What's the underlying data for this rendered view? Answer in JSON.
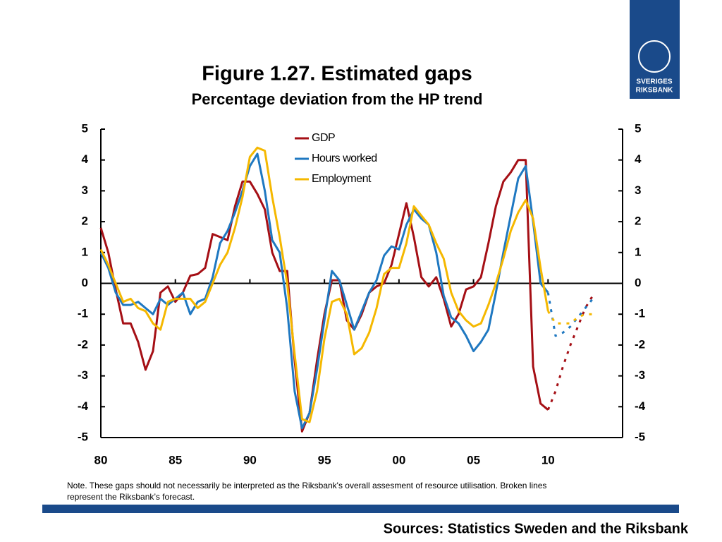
{
  "logo": {
    "line1": "SVERIGES",
    "line2": "RIKSBANK"
  },
  "note": [
    "Note. These gaps should not necessarily be interpreted as the Riksbank's overall assesment of resource utilisation. Broken lines",
    "represent the Riksbank’s forecast."
  ],
  "sources": "Sources: Statistics Sweden and the Riksbank",
  "chart_data": {
    "type": "line",
    "title": "Figure 1.27. Estimated gaps",
    "subtitle": "Percentage deviation from the HP trend",
    "x": [
      1980,
      1980.5,
      1981,
      1981.5,
      1982,
      1982.5,
      1983,
      1983.5,
      1984,
      1984.5,
      1985,
      1985.5,
      1986,
      1986.5,
      1987,
      1987.5,
      1988,
      1988.5,
      1989,
      1989.5,
      1990,
      1990.5,
      1991,
      1991.5,
      1992,
      1992.5,
      1993,
      1993.5,
      1994,
      1994.5,
      1995,
      1995.5,
      1996,
      1996.5,
      1997,
      1997.5,
      1998,
      1998.5,
      1999,
      1999.5,
      2000,
      2000.5,
      2001,
      2001.5,
      2002,
      2002.5,
      2003,
      2003.5,
      2004,
      2004.5,
      2005,
      2005.5,
      2006,
      2006.5,
      2007,
      2007.5,
      2008,
      2008.5,
      2009,
      2009.5,
      2010,
      2010.5,
      2011,
      2011.5,
      2012,
      2012.5,
      2013
    ],
    "series": [
      {
        "name": "GDP",
        "color": "#a50f15",
        "values": [
          1.8,
          1.0,
          -0.2,
          -1.3,
          -1.3,
          -1.9,
          -2.8,
          -2.2,
          -0.3,
          -0.1,
          -0.6,
          -0.3,
          0.25,
          0.3,
          0.5,
          1.6,
          1.5,
          1.4,
          2.5,
          3.3,
          3.3,
          2.9,
          2.4,
          1.0,
          0.4,
          0.4,
          -2.5,
          -4.8,
          -4.2,
          -2.5,
          -1.0,
          0.1,
          0.1,
          -1.2,
          -1.5,
          -1.0,
          -0.3,
          -0.1,
          0.0,
          0.6,
          1.6,
          2.6,
          1.5,
          0.2,
          -0.1,
          0.2,
          -0.5,
          -1.4,
          -1.0,
          -0.2,
          -0.1,
          0.2,
          1.3,
          2.5,
          3.3,
          3.6,
          4.0,
          4.0,
          -2.7,
          -3.9,
          -4.1,
          null,
          null,
          null,
          null,
          null,
          null
        ],
        "forecast": [
          null,
          null,
          null,
          null,
          null,
          null,
          null,
          null,
          null,
          null,
          null,
          null,
          null,
          null,
          null,
          null,
          null,
          null,
          null,
          null,
          null,
          null,
          null,
          null,
          null,
          null,
          null,
          null,
          null,
          null,
          null,
          null,
          null,
          null,
          null,
          null,
          null,
          null,
          null,
          null,
          null,
          null,
          null,
          null,
          null,
          null,
          null,
          null,
          null,
          null,
          null,
          null,
          null,
          null,
          null,
          null,
          null,
          null,
          null,
          null,
          -4.1,
          -3.5,
          -2.7,
          -2.0,
          -1.4,
          -0.8,
          -0.4
        ]
      },
      {
        "name": "Hours worked",
        "color": "#1f78c1",
        "values": [
          1.0,
          0.5,
          -0.3,
          -0.7,
          -0.7,
          -0.6,
          -0.8,
          -1.0,
          -0.5,
          -0.7,
          -0.5,
          -0.3,
          -1.0,
          -0.6,
          -0.5,
          0.2,
          1.3,
          1.7,
          2.3,
          3.0,
          3.8,
          4.2,
          3.0,
          1.4,
          1.0,
          -0.8,
          -3.5,
          -4.7,
          -4.2,
          -2.8,
          -1.2,
          0.4,
          0.1,
          -0.7,
          -1.5,
          -0.9,
          -0.3,
          0.1,
          0.9,
          1.2,
          1.1,
          1.9,
          2.4,
          2.1,
          1.9,
          1.0,
          -0.4,
          -1.1,
          -1.3,
          -1.7,
          -2.2,
          -1.9,
          -1.5,
          -0.3,
          1.0,
          2.2,
          3.4,
          3.8,
          2.0,
          0.0,
          -0.3,
          null,
          null,
          null,
          null,
          null,
          null
        ],
        "forecast": [
          null,
          null,
          null,
          null,
          null,
          null,
          null,
          null,
          null,
          null,
          null,
          null,
          null,
          null,
          null,
          null,
          null,
          null,
          null,
          null,
          null,
          null,
          null,
          null,
          null,
          null,
          null,
          null,
          null,
          null,
          null,
          null,
          null,
          null,
          null,
          null,
          null,
          null,
          null,
          null,
          null,
          null,
          null,
          null,
          null,
          null,
          null,
          null,
          null,
          null,
          null,
          null,
          null,
          null,
          null,
          null,
          null,
          null,
          null,
          null,
          -0.3,
          -1.7,
          -1.6,
          -1.4,
          -1.1,
          -0.8,
          -0.5
        ]
      },
      {
        "name": "Employment",
        "color": "#f5b800",
        "values": [
          1.1,
          0.6,
          0.0,
          -0.6,
          -0.5,
          -0.8,
          -0.9,
          -1.3,
          -1.5,
          -0.6,
          -0.5,
          -0.5,
          -0.5,
          -0.8,
          -0.6,
          0.0,
          0.6,
          1.0,
          1.8,
          2.8,
          4.1,
          4.4,
          4.3,
          2.8,
          1.5,
          0.0,
          -2.3,
          -4.4,
          -4.5,
          -3.5,
          -1.8,
          -0.6,
          -0.5,
          -1.0,
          -2.3,
          -2.1,
          -1.6,
          -0.8,
          0.3,
          0.5,
          0.5,
          1.3,
          2.5,
          2.2,
          1.9,
          1.3,
          0.8,
          -0.3,
          -0.9,
          -1.2,
          -1.4,
          -1.3,
          -0.7,
          0.0,
          0.8,
          1.7,
          2.3,
          2.7,
          2.1,
          0.5,
          -0.9,
          null,
          null,
          null,
          null,
          null,
          null
        ],
        "forecast": [
          null,
          null,
          null,
          null,
          null,
          null,
          null,
          null,
          null,
          null,
          null,
          null,
          null,
          null,
          null,
          null,
          null,
          null,
          null,
          null,
          null,
          null,
          null,
          null,
          null,
          null,
          null,
          null,
          null,
          null,
          null,
          null,
          null,
          null,
          null,
          null,
          null,
          null,
          null,
          null,
          null,
          null,
          null,
          null,
          null,
          null,
          null,
          null,
          null,
          null,
          null,
          null,
          null,
          null,
          null,
          null,
          null,
          null,
          null,
          null,
          -0.9,
          -1.3,
          -1.3,
          -1.3,
          -1.1,
          -1.0,
          -1.0
        ]
      }
    ],
    "xlim": [
      1980,
      2015
    ],
    "xticks": [
      {
        "value": 1980,
        "label": "80"
      },
      {
        "value": 1985,
        "label": "85"
      },
      {
        "value": 1990,
        "label": "90"
      },
      {
        "value": 1995,
        "label": "95"
      },
      {
        "value": 2000,
        "label": "00"
      },
      {
        "value": 2005,
        "label": "05"
      },
      {
        "value": 2010,
        "label": "10"
      }
    ],
    "ylim": [
      -5,
      5
    ],
    "yticks": [
      -5,
      -4,
      -3,
      -2,
      -1,
      0,
      1,
      2,
      3,
      4,
      5
    ],
    "y2lim": [
      -5,
      5
    ],
    "y2ticks": [
      -5,
      -4,
      -3,
      -2,
      -1,
      0,
      1,
      2,
      3,
      4,
      5
    ],
    "legend": "upper center",
    "grid": false
  }
}
